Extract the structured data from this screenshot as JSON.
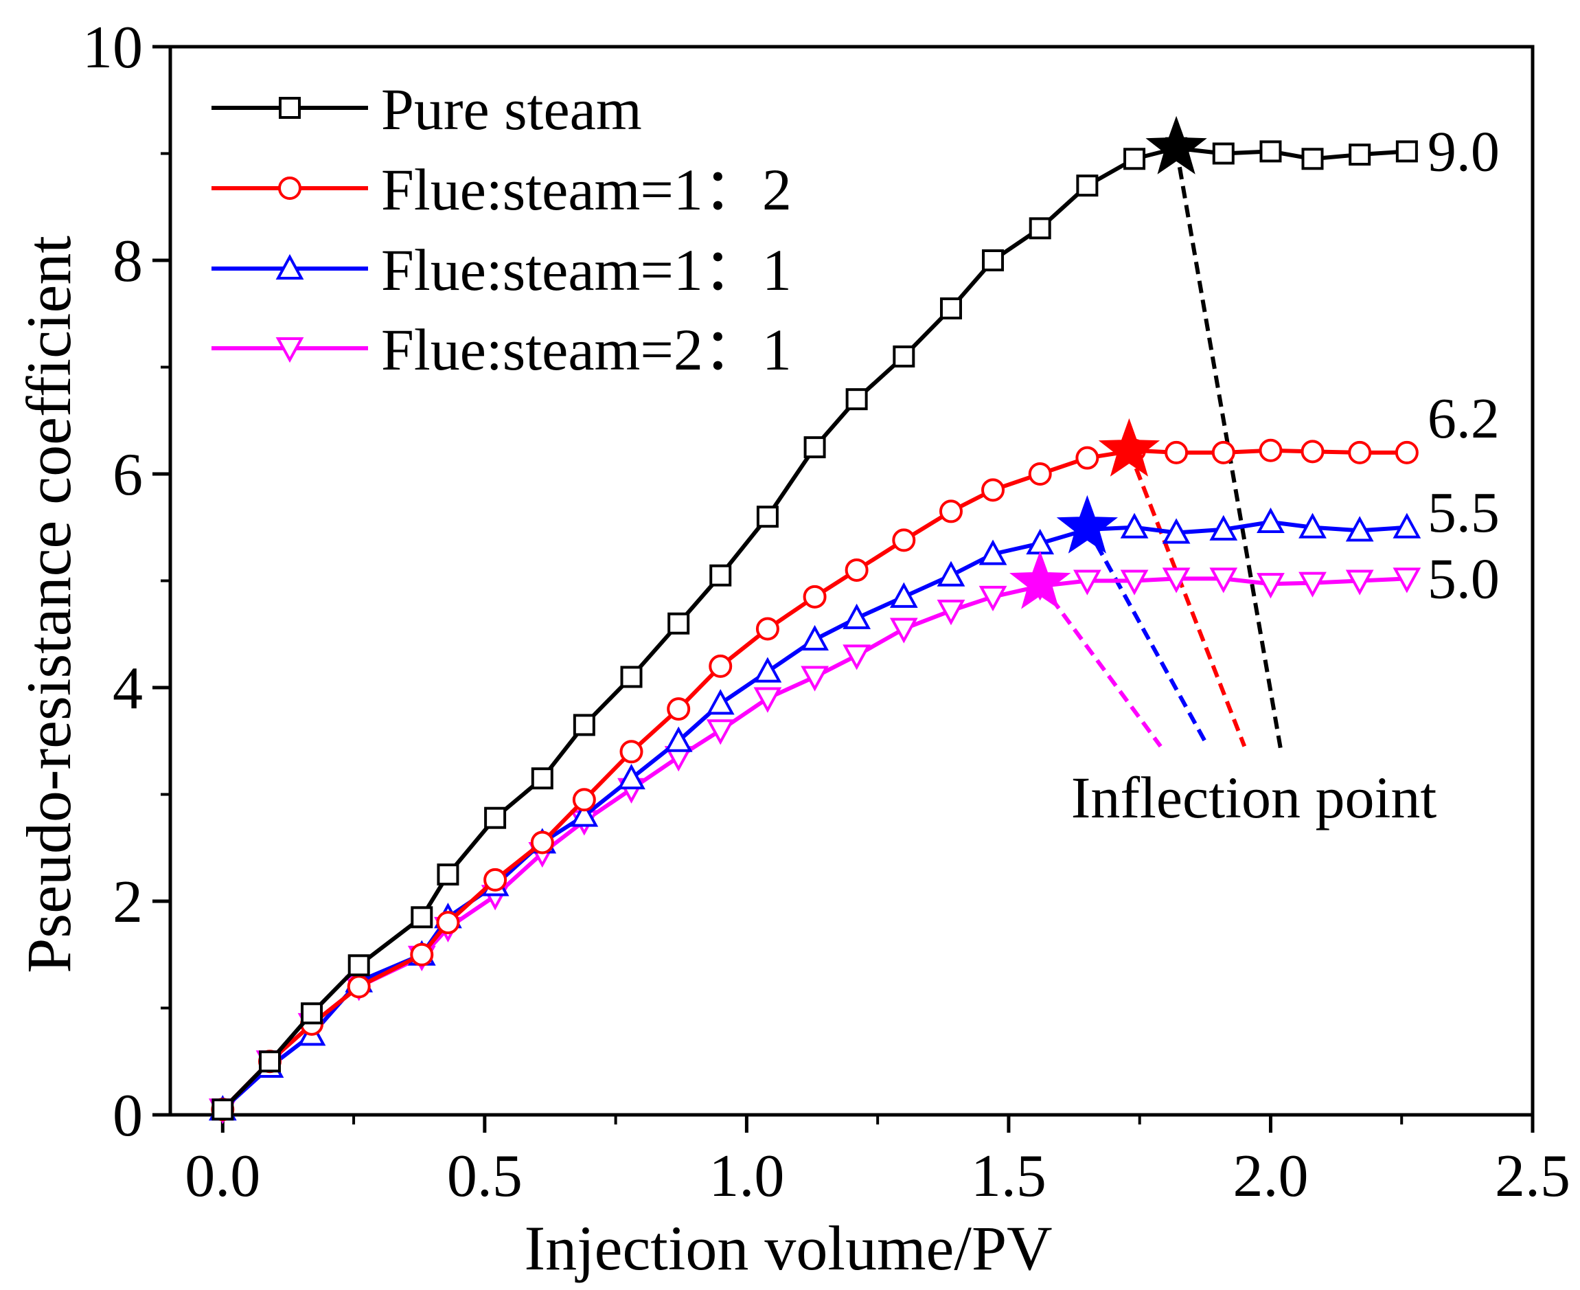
{
  "chart_data": {
    "type": "line",
    "title": "",
    "xlabel": "Injection volume/PV",
    "ylabel": "Pseudo-resistance coefficient",
    "xlim": [
      -0.1,
      2.5
    ],
    "ylim": [
      0,
      10
    ],
    "x_ticks": [
      0.0,
      0.5,
      1.0,
      1.5,
      2.0,
      2.5
    ],
    "x_tick_labels": [
      "0.0",
      "0.5",
      "1.0",
      "1.5",
      "2.0",
      "2.5"
    ],
    "y_ticks": [
      0,
      2,
      4,
      6,
      8,
      10
    ],
    "y_tick_labels": [
      "0",
      "2",
      "4",
      "6",
      "8",
      "10"
    ],
    "grid": false,
    "legend_position": "top-left",
    "series": [
      {
        "name": "Pure steam",
        "color": "#000000",
        "marker": "square",
        "x": [
          0.0,
          0.09,
          0.17,
          0.26,
          0.38,
          0.43,
          0.52,
          0.61,
          0.69,
          0.78,
          0.87,
          0.95,
          1.04,
          1.13,
          1.21,
          1.3,
          1.39,
          1.47,
          1.56,
          1.65,
          1.74,
          1.82,
          1.91,
          2.0,
          2.08,
          2.17,
          2.26
        ],
        "values": [
          0.05,
          0.5,
          0.95,
          1.4,
          1.85,
          2.25,
          2.78,
          3.15,
          3.65,
          4.1,
          4.6,
          5.05,
          5.6,
          6.25,
          6.7,
          7.1,
          7.55,
          8.0,
          8.3,
          8.7,
          8.95,
          9.05,
          9.0,
          9.02,
          8.95,
          8.99,
          9.02
        ]
      },
      {
        "name": "Flue:steam=1：2",
        "color": "#ff0000",
        "marker": "circle",
        "x": [
          0.0,
          0.09,
          0.17,
          0.26,
          0.38,
          0.43,
          0.52,
          0.61,
          0.69,
          0.78,
          0.87,
          0.95,
          1.04,
          1.13,
          1.21,
          1.3,
          1.39,
          1.47,
          1.56,
          1.65,
          1.74,
          1.82,
          1.91,
          2.0,
          2.08,
          2.17,
          2.26
        ],
        "values": [
          0.05,
          0.5,
          0.85,
          1.2,
          1.5,
          1.8,
          2.2,
          2.55,
          2.95,
          3.4,
          3.8,
          4.2,
          4.55,
          4.85,
          5.1,
          5.38,
          5.65,
          5.85,
          6.0,
          6.15,
          6.22,
          6.2,
          6.2,
          6.22,
          6.21,
          6.2,
          6.2
        ]
      },
      {
        "name": "Flue:steam=1：1",
        "color": "#0000ff",
        "marker": "triangle-up",
        "x": [
          0.0,
          0.09,
          0.17,
          0.26,
          0.38,
          0.43,
          0.52,
          0.61,
          0.69,
          0.78,
          0.87,
          0.95,
          1.04,
          1.13,
          1.21,
          1.3,
          1.39,
          1.47,
          1.56,
          1.65,
          1.74,
          1.82,
          1.91,
          2.0,
          2.08,
          2.17,
          2.26
        ],
        "values": [
          0.05,
          0.45,
          0.75,
          1.25,
          1.5,
          1.85,
          2.15,
          2.55,
          2.8,
          3.15,
          3.5,
          3.85,
          4.15,
          4.45,
          4.65,
          4.85,
          5.05,
          5.25,
          5.35,
          5.48,
          5.5,
          5.45,
          5.48,
          5.55,
          5.5,
          5.47,
          5.5
        ]
      },
      {
        "name": "Flue:steam=2：1",
        "color": "#ff00ff",
        "marker": "triangle-down",
        "x": [
          0.0,
          0.09,
          0.17,
          0.26,
          0.38,
          0.43,
          0.52,
          0.61,
          0.69,
          0.78,
          0.87,
          0.95,
          1.04,
          1.13,
          1.21,
          1.3,
          1.39,
          1.47,
          1.56,
          1.65,
          1.74,
          1.82,
          1.91,
          2.0,
          2.08,
          2.17,
          2.26
        ],
        "values": [
          0.05,
          0.5,
          0.85,
          1.2,
          1.48,
          1.75,
          2.05,
          2.45,
          2.75,
          3.05,
          3.35,
          3.6,
          3.9,
          4.1,
          4.3,
          4.55,
          4.72,
          4.85,
          4.95,
          5.0,
          5.0,
          5.02,
          5.02,
          4.97,
          4.98,
          5.0,
          5.02
        ]
      }
    ],
    "inflection_points": [
      {
        "series": "Pure steam",
        "x": 1.82,
        "y": 9.05,
        "label": "9.0",
        "color": "#000000",
        "line_end": {
          "x": 2.02,
          "y": 3.4
        }
      },
      {
        "series": "Flue:steam=1：2",
        "x": 1.73,
        "y": 6.22,
        "label": "6.2",
        "color": "#ff0000",
        "line_end": {
          "x": 1.95,
          "y": 3.45
        }
      },
      {
        "series": "Flue:steam=1：1",
        "x": 1.65,
        "y": 5.5,
        "label": "5.5",
        "color": "#0000ff",
        "line_end": {
          "x": 1.88,
          "y": 3.45
        }
      },
      {
        "series": "Flue:steam=2：1",
        "x": 1.56,
        "y": 4.98,
        "label": "5.0",
        "color": "#ff00ff",
        "line_end": {
          "x": 1.79,
          "y": 3.45
        }
      }
    ],
    "annotation": "Inflection point"
  }
}
